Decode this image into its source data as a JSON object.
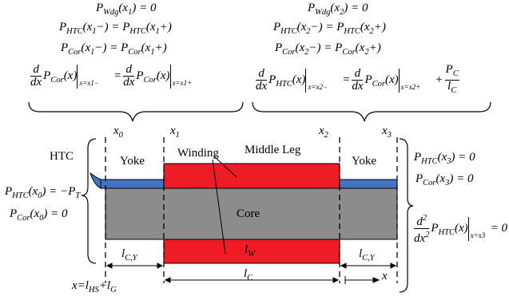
{
  "equations": {
    "top_left": {
      "line1": "P_Wdg(x_1) = 0",
      "line2": "P_HTC(x_1−) = P_HTC(x_1+)",
      "line3": "P_Cor(x_1−) = P_Cor(x_1+)",
      "deriv_lhs_sub": "x=x1−",
      "deriv_rhs_sub": "x=x1+"
    },
    "top_right": {
      "line1": "P_Wdg(x_2) = 0",
      "line2": "P_HTC(x_2−) = P_HTC(x_2+)",
      "line3": "P_Cor(x_2−) = P_Cor(x_2+)",
      "deriv_lhs_sub": "x=x2−",
      "deriv_rhs_sub": "x=x2+",
      "frac_num": "P_C",
      "frac_den": "l_C"
    },
    "left": {
      "line1": "P_HTC(x_0) = −P_T",
      "line2": "P_Cor(x_0) = 0"
    },
    "right": {
      "line1": "P_HTC(x_3) = 0",
      "line2": "P_Cor(x_3) = 0",
      "second_deriv_sub": "x=x3"
    }
  },
  "labels": {
    "x0": "x0",
    "x1": "x1",
    "x2": "x2",
    "x3": "x3",
    "htc": "HTC",
    "yoke_left": "Yoke",
    "yoke_right": "Yoke",
    "winding": "Winding",
    "middle_leg": "Middle Leg",
    "core": "Core",
    "lw": "lW",
    "lcy_left": "lC,Y",
    "lcy_right": "lC,Y",
    "lc": "lC",
    "x_origin": "x=lHS+lG",
    "x_axis": "x"
  },
  "colors": {
    "winding": "#ee1c24",
    "core": "#8c8c8c",
    "htc": "#4472c4",
    "line": "#000000"
  }
}
